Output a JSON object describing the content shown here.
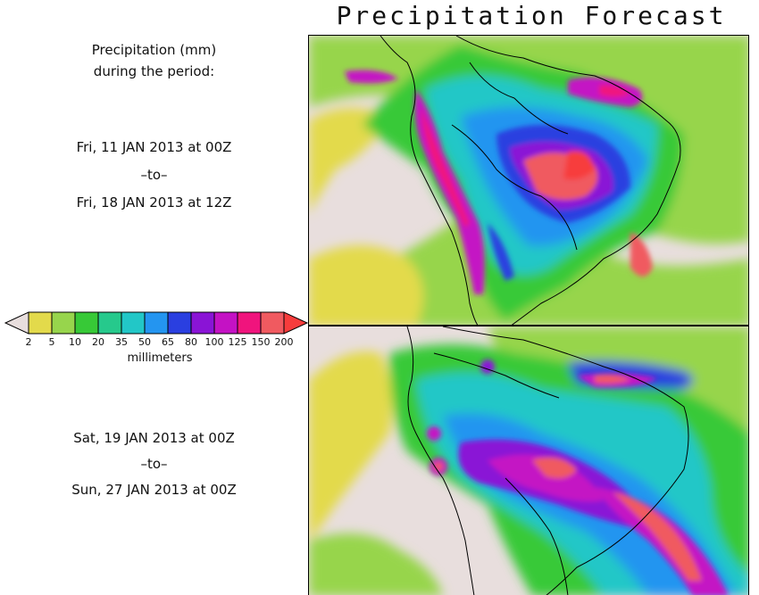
{
  "title": "Precipitation Forecast",
  "header": {
    "line1": "Precipitation (mm)",
    "line2": "during the period:"
  },
  "periods": [
    {
      "from": "Fri, 11 JAN 2013 at 00Z",
      "sep": "–to–",
      "to": "Fri, 18 JAN 2013 at 12Z"
    },
    {
      "from": "Sat, 19 JAN 2013 at 00Z",
      "sep": "–to–",
      "to": "Sun, 27 JAN 2013 at 00Z"
    }
  ],
  "legend": {
    "unit": "millimeters",
    "ticks": [
      "2",
      "5",
      "10",
      "20",
      "35",
      "50",
      "65",
      "80",
      "100",
      "125",
      "150",
      "200"
    ],
    "colors": [
      "#e8dedd",
      "#e3da4b",
      "#97d54c",
      "#37c937",
      "#26c98c",
      "#22c7c7",
      "#2495f0",
      "#2a3fe0",
      "#8a14d6",
      "#c412c4",
      "#f0147d",
      "#f05a60",
      "#f73c3c"
    ]
  }
}
